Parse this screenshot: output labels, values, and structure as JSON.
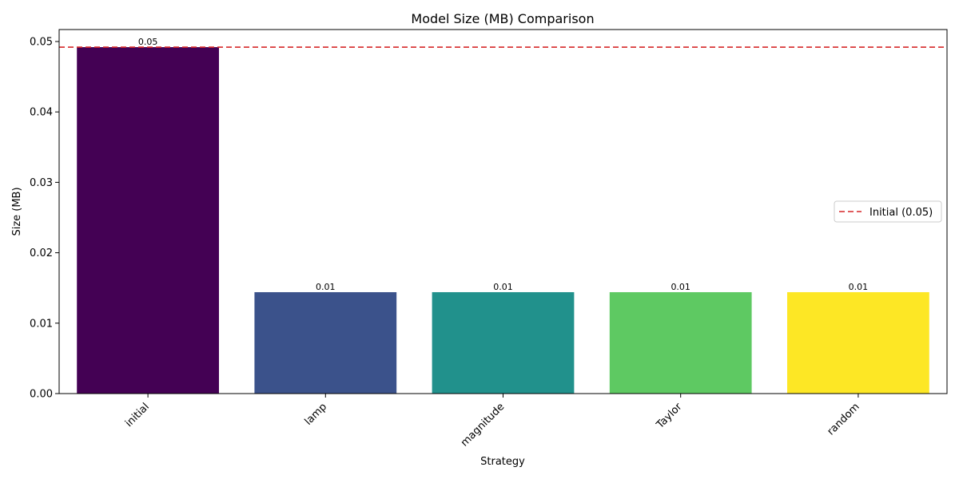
{
  "chart_data": {
    "type": "bar",
    "title": "Model Size (MB) Comparison",
    "xlabel": "Strategy",
    "ylabel": "Size (MB)",
    "categories": [
      "initial",
      "lamp",
      "magnitude",
      "Taylor",
      "random"
    ],
    "values": [
      0.0492,
      0.0144,
      0.0144,
      0.0144,
      0.0144
    ],
    "data_labels": [
      "0.05",
      "0.01",
      "0.01",
      "0.01",
      "0.01"
    ],
    "colors": [
      "#440154",
      "#3b528b",
      "#21918c",
      "#5ec962",
      "#fde725"
    ],
    "ylim": [
      0,
      0.0517
    ],
    "yticks": [
      0,
      0.01,
      0.02,
      0.03,
      0.04,
      0.05
    ],
    "ytick_labels": [
      "0.00",
      "0.01",
      "0.02",
      "0.03",
      "0.04",
      "0.05"
    ],
    "reference_line": {
      "value": 0.0492,
      "label": "Initial (0.05)",
      "color": "#d62728",
      "style": "dashed"
    },
    "legend": {
      "position": "right",
      "entries": [
        "Initial (0.05)"
      ]
    },
    "grid": false
  }
}
